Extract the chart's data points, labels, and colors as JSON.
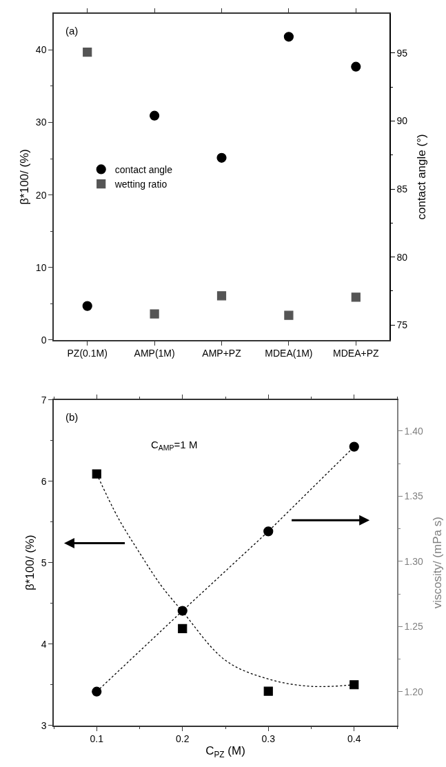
{
  "chart_data": [
    {
      "type": "scatter",
      "ylabel": "β*100/ (%)",
      "y2label": "contact angle (°)",
      "categories": [
        "PZ(0.1M)",
        "AMP(1M)",
        "AMP+PZ",
        "MDEA(1M)",
        "MDEA+PZ"
      ],
      "series": [
        {
          "name": "contact angle",
          "color": "#000000",
          "axis": "y2",
          "marker": "circle",
          "values": [
            76.4,
            90.4,
            87.3,
            96.2,
            94.0
          ]
        },
        {
          "name": "wetting ratio",
          "color": "#555555",
          "marker": "square",
          "values": [
            39.7,
            3.6,
            6.1,
            3.4,
            5.9
          ]
        }
      ],
      "ylim": [
        0,
        45
      ],
      "yticks": [
        0,
        10,
        20,
        30,
        40
      ],
      "y2lim": [
        73.9,
        97.9
      ],
      "y2ticks": [
        75,
        80,
        85,
        90,
        95
      ],
      "annotations": [
        "(a)"
      ],
      "legend": "left"
    },
    {
      "type": "scatter",
      "xlabel": "C$_{PZ}$ (M)",
      "ylabel": "β*100/ (%)",
      "y2label": "viscosity/ (mPa s)",
      "x": [
        0.1,
        0.2,
        0.3,
        0.4
      ],
      "series": [
        {
          "color": "#000000",
          "marker": "square",
          "values": [
            6.09,
            4.19,
            3.42,
            3.5
          ]
        },
        {
          "type": "line",
          "color": "#000000",
          "marker": "none",
          "line_style": "dotted",
          "x": [
            0.1,
            0.125,
            0.15,
            0.175,
            0.2,
            0.25,
            0.3,
            0.35,
            0.4
          ],
          "values": [
            6.09,
            5.55,
            5.12,
            4.72,
            4.4,
            3.8,
            3.57,
            3.48,
            3.5
          ]
        },
        {
          "type": "line",
          "color": "#000000",
          "axis": "y2",
          "marker": "circle",
          "line_style": "dotted",
          "values": [
            1.2,
            1.262,
            1.323,
            1.388
          ]
        }
      ],
      "xlim": [
        0.05,
        0.45
      ],
      "xticks": [
        0.1,
        0.2,
        0.3,
        0.4
      ],
      "ylim": [
        3,
        7
      ],
      "yticks": [
        3,
        4,
        5,
        6,
        7
      ],
      "y2lim": [
        1.174,
        1.424
      ],
      "y2ticks": [
        {
          "value": 1.2,
          "label": "1.20"
        },
        {
          "value": 1.25,
          "label": "1.25"
        },
        {
          "value": 1.3,
          "label": "1.30"
        },
        {
          "value": 1.35,
          "label": "1.35"
        },
        {
          "value": 1.4,
          "label": "1.40"
        }
      ],
      "annotations": [
        "(b)",
        "C$_{AMP}$=1 M"
      ],
      "legend": false
    }
  ]
}
